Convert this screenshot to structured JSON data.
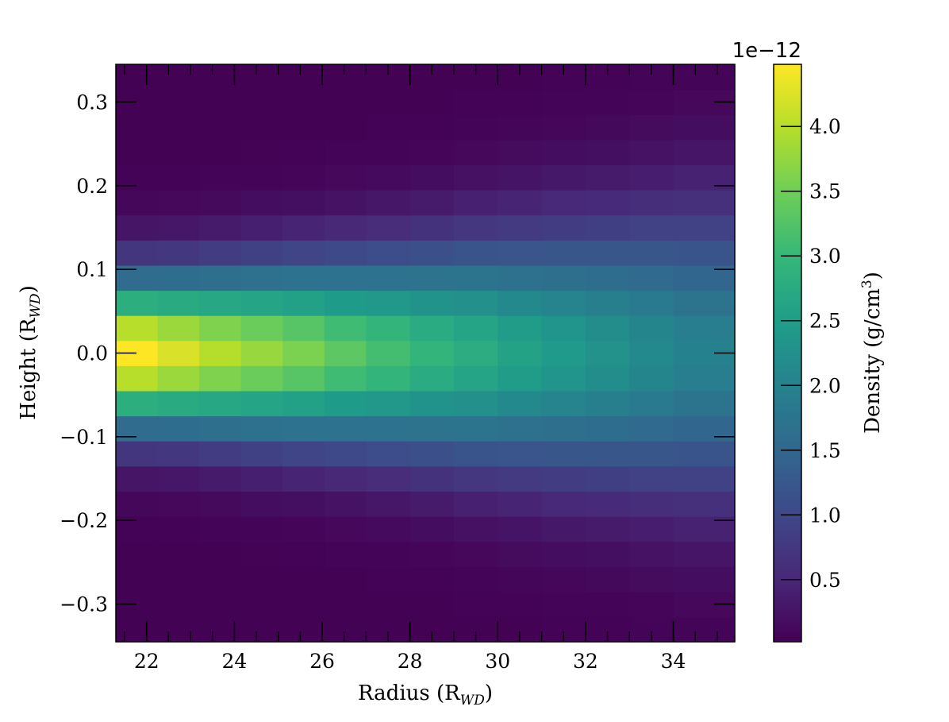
{
  "chart_data": {
    "type": "heatmap",
    "colormap": "viridis",
    "xlabel": {
      "main": "Radius (R",
      "sub": "WD",
      "end": ")"
    },
    "ylabel": {
      "main": "Height (R",
      "sub": "WD",
      "end": ")"
    },
    "colorbar_label": {
      "main": "Density (g/cm",
      "sup": "3",
      "end": ")"
    },
    "colorbar_offset": "1e−12",
    "colorbar_unit_scale": 1e-12,
    "x_range": [
      21.3,
      35.4
    ],
    "y_range": [
      -0.345,
      0.345
    ],
    "c_range": [
      0.02,
      4.48
    ],
    "grid": false,
    "x_ticks": [
      {
        "v": 22,
        "label": "22"
      },
      {
        "v": 24,
        "label": "24"
      },
      {
        "v": 26,
        "label": "26"
      },
      {
        "v": 28,
        "label": "28"
      },
      {
        "v": 30,
        "label": "30"
      },
      {
        "v": 32,
        "label": "32"
      },
      {
        "v": 34,
        "label": "34"
      }
    ],
    "x_minor_step": 0.5,
    "y_ticks": [
      {
        "v": 0.3,
        "label": "0.3"
      },
      {
        "v": 0.2,
        "label": "0.2"
      },
      {
        "v": 0.1,
        "label": "0.1"
      },
      {
        "v": 0.0,
        "label": "0.0"
      },
      {
        "v": -0.1,
        "label": "−0.1"
      },
      {
        "v": -0.2,
        "label": "−0.2"
      },
      {
        "v": -0.3,
        "label": "−0.3"
      }
    ],
    "c_ticks": [
      {
        "v": 0.5,
        "label": "0.5"
      },
      {
        "v": 1.0,
        "label": "1.0"
      },
      {
        "v": 1.5,
        "label": "1.5"
      },
      {
        "v": 2.0,
        "label": "2.0"
      },
      {
        "v": 2.5,
        "label": "2.5"
      },
      {
        "v": 3.0,
        "label": "3.0"
      },
      {
        "v": 3.5,
        "label": "3.5"
      },
      {
        "v": 4.0,
        "label": "4.0"
      }
    ],
    "x_bin_edges": [
      21.3,
      22.25,
      23.2,
      24.15,
      25.1,
      26.05,
      27.0,
      28.0,
      29.0,
      30.0,
      31.0,
      32.0,
      33.0,
      34.0,
      35.4
    ],
    "y_bin_edges": [
      -0.345,
      -0.315,
      -0.285,
      -0.255,
      -0.225,
      -0.195,
      -0.165,
      -0.135,
      -0.105,
      -0.075,
      -0.045,
      -0.015,
      0.015,
      0.045,
      0.075,
      0.105,
      0.135,
      0.165,
      0.195,
      0.225,
      0.255,
      0.285,
      0.315,
      0.345
    ],
    "peak_by_x_bin": [
      4.45,
      4.2,
      3.95,
      3.75,
      3.55,
      3.3,
      3.1,
      2.9,
      2.75,
      2.55,
      2.4,
      2.25,
      2.1,
      1.95
    ],
    "vertical_scale_height_by_x_bin": [
      0.062,
      0.064,
      0.067,
      0.07,
      0.073,
      0.077,
      0.081,
      0.086,
      0.091,
      0.096,
      0.101,
      0.106,
      0.112,
      0.118
    ]
  }
}
